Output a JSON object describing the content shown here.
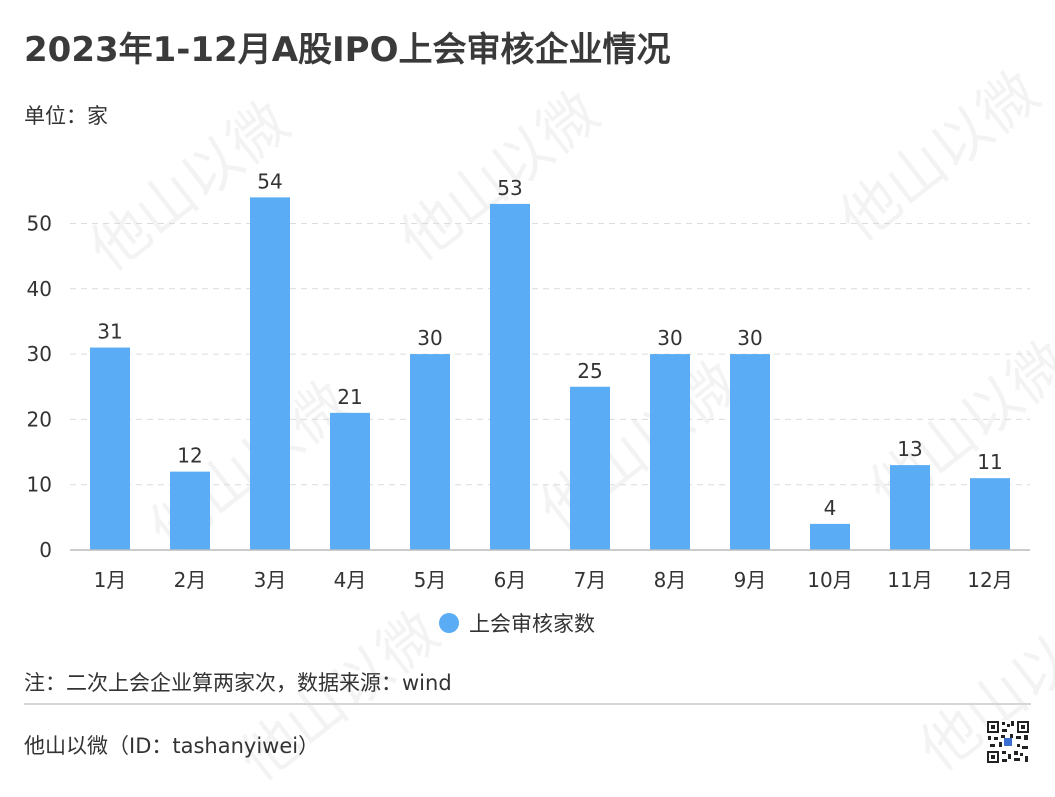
{
  "title": "2023年1-12月A股IPO上会审核企业情况",
  "unit_label": "单位：家",
  "note": "注：二次上会企业算两家次，数据来源：wind",
  "footer": "他山以微（ID：tashanyiwei）",
  "watermark": {
    "text": "他山以微",
    "latin": "TASHANYIWEI"
  },
  "colors": {
    "bar": "#5aacf5",
    "grid": "#dcdcdc",
    "axis": "#bbbbbb",
    "text": "#333333"
  },
  "chart_data": {
    "type": "bar",
    "title": "2023年1-12月A股IPO上会审核企业情况",
    "categories": [
      "1月",
      "2月",
      "3月",
      "4月",
      "5月",
      "6月",
      "7月",
      "8月",
      "9月",
      "10月",
      "11月",
      "12月"
    ],
    "series": [
      {
        "name": "上会审核家数",
        "values": [
          31,
          12,
          54,
          21,
          30,
          53,
          25,
          30,
          30,
          4,
          13,
          11
        ]
      }
    ],
    "y_ticks": [
      0,
      10,
      20,
      30,
      40,
      50
    ],
    "ylim": [
      0,
      60
    ],
    "grid": true,
    "legend_position": "bottom-center",
    "data_labels": true
  }
}
